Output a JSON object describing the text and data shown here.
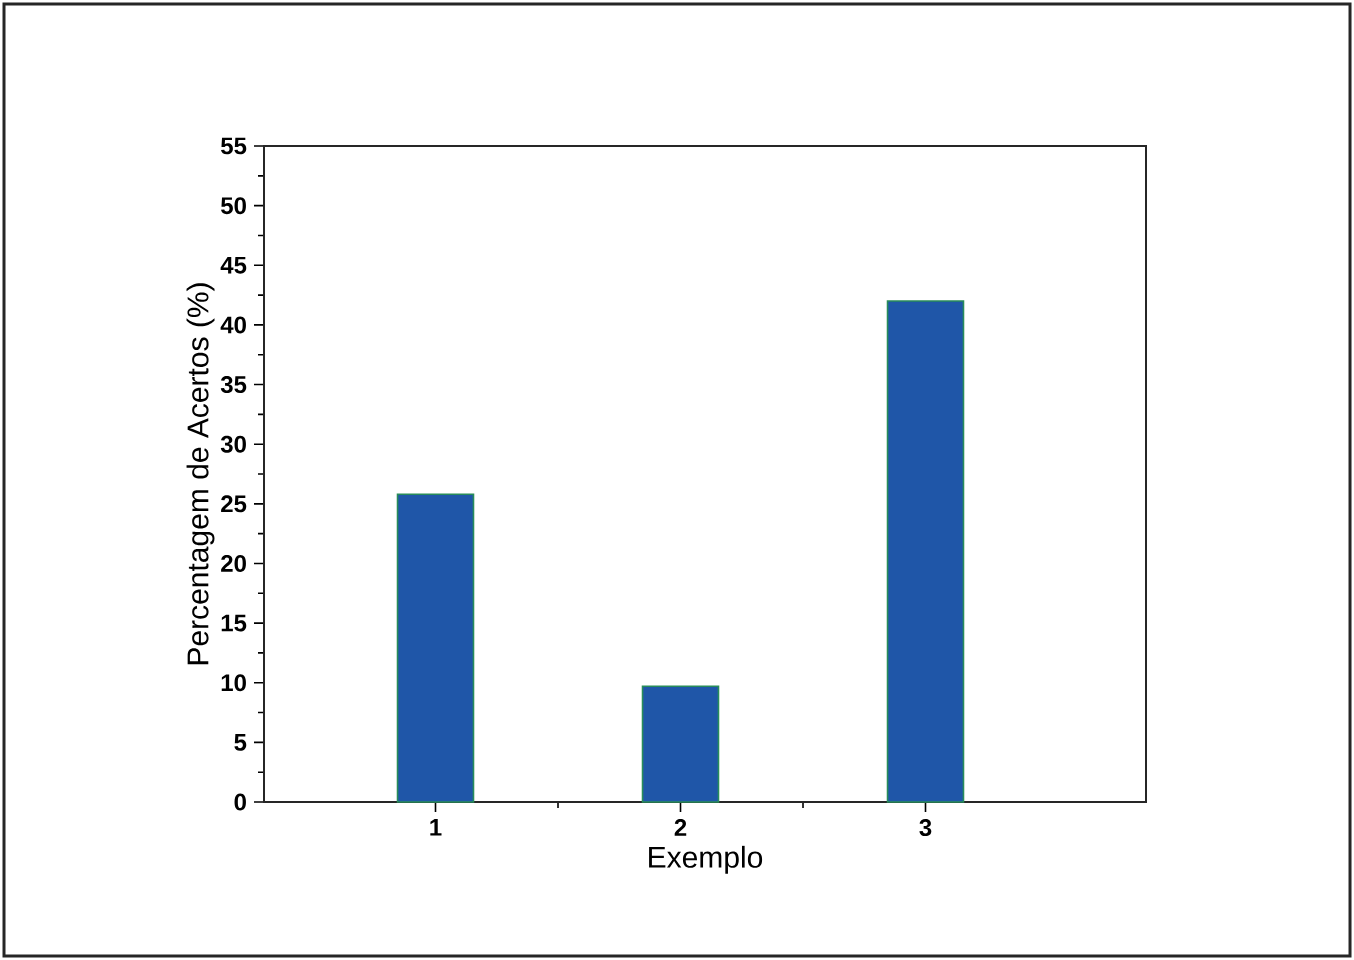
{
  "chart_data": {
    "type": "bar",
    "xlabel": "Exemplo",
    "ylabel": "Percentagem de Acertos (%)",
    "x": [
      1,
      2,
      3
    ],
    "values": [
      25.8,
      9.7,
      42.0
    ],
    "color": "#1f56a8",
    "xlim": [
      0.3,
      3.9
    ],
    "xticks": [
      1,
      2,
      3
    ],
    "ylim": [
      0,
      55
    ],
    "yticks": [
      0,
      5,
      10,
      15,
      20,
      25,
      30,
      35,
      40,
      45,
      50,
      55
    ]
  }
}
